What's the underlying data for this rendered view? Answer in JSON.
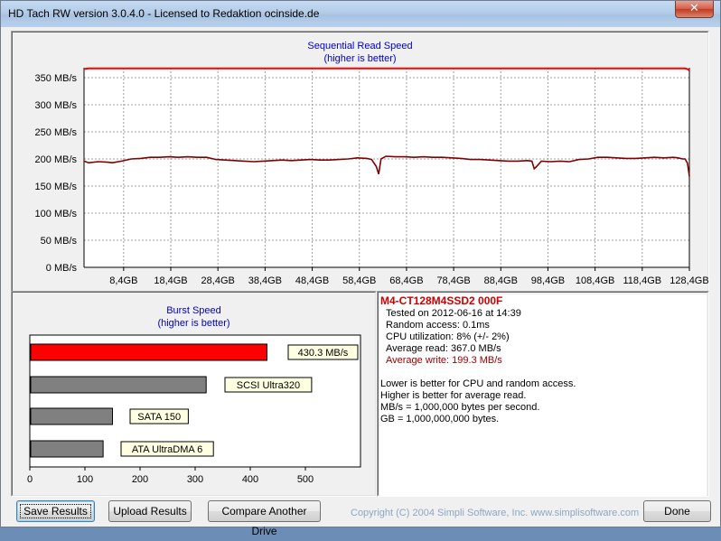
{
  "window": {
    "title": "HD Tach RW version 3.0.4.0 - Licensed to Redaktion ocinside.de",
    "close_label": "✕"
  },
  "sequential_chart": {
    "title": "Sequential Read Speed",
    "subtitle": "(higher is better)"
  },
  "burst_chart": {
    "title": "Burst Speed",
    "subtitle": "(higher is better)"
  },
  "chart_data": [
    {
      "type": "line",
      "title": "Sequential Read Speed",
      "subtitle": "(higher is better)",
      "y_ticks": [
        "0 MB/s",
        "50 MB/s",
        "100 MB/s",
        "150 MB/s",
        "200 MB/s",
        "250 MB/s",
        "300 MB/s",
        "350 MB/s"
      ],
      "x_ticks": [
        "8,4GB",
        "18,4GB",
        "28,4GB",
        "38,4GB",
        "48,4GB",
        "58,4GB",
        "68,4GB",
        "78,4GB",
        "88,4GB",
        "98,4GB",
        "108,4GB",
        "118,4GB",
        "128,4GB"
      ],
      "ylim": [
        0,
        370
      ],
      "xlim": [
        0,
        128.4
      ],
      "grid": true,
      "series": [
        {
          "color": "#ff0000",
          "x": [
            0,
            1,
            10,
            30,
            60,
            90,
            120,
            127.5,
            128,
            128.4
          ],
          "y": [
            366,
            367,
            367,
            367,
            367,
            367,
            367,
            367,
            366,
            363
          ]
        },
        {
          "color": "#800000",
          "x": [
            0,
            1,
            3,
            5,
            6,
            8,
            10,
            12,
            14,
            16,
            18,
            20,
            22,
            24,
            26,
            28,
            30,
            32,
            34,
            36,
            38,
            40,
            42,
            44,
            46,
            48,
            50,
            52,
            54,
            56,
            58,
            60,
            61,
            62,
            62.5,
            63,
            64,
            66,
            68,
            70,
            72,
            74,
            76,
            78,
            80,
            82,
            84,
            86,
            88,
            90,
            92,
            94,
            95,
            95.5,
            96,
            97,
            99,
            101,
            103,
            105,
            107,
            109,
            111,
            113,
            115,
            117,
            119,
            121,
            123,
            125,
            126,
            127,
            127.5,
            128,
            128.4
          ],
          "y": [
            196,
            193,
            195,
            194,
            193,
            196,
            200,
            201,
            203,
            203,
            204,
            203,
            204,
            203,
            203,
            199,
            198,
            197,
            196,
            195,
            196,
            197,
            198,
            197,
            198,
            199,
            198,
            198,
            199,
            200,
            202,
            201,
            199,
            186,
            172,
            200,
            205,
            204,
            204,
            203,
            204,
            203,
            203,
            202,
            201,
            199,
            199,
            198,
            197,
            196,
            196,
            197,
            196,
            182,
            186,
            196,
            195,
            196,
            195,
            199,
            200,
            203,
            203,
            202,
            201,
            201,
            202,
            203,
            202,
            203,
            202,
            200,
            200,
            192,
            168
          ]
        }
      ]
    },
    {
      "type": "bar",
      "orientation": "horizontal",
      "title": "Burst Speed",
      "subtitle": "(higher is better)",
      "categories": [
        "430.3 MB/s",
        "SCSI Ultra320",
        "SATA 150",
        "ATA UltraDMA 6"
      ],
      "values": [
        430.3,
        320,
        150,
        133
      ],
      "colors": [
        "#ff0000",
        "#808080",
        "#808080",
        "#808080"
      ],
      "x_ticks": [
        "0",
        "100",
        "200",
        "300",
        "400",
        "500"
      ],
      "xlim": [
        0,
        600
      ]
    }
  ],
  "results": {
    "drive": "M4-CT128M4SSD2 000F",
    "tested_on": "Tested on 2012-06-16 at 14:39",
    "random_access": "Random access: 0.1ms",
    "cpu": "CPU utilization: 8% (+/- 2%)",
    "avg_read": "Average read: 367.0 MB/s",
    "avg_write": "Average write: 199.3 MB/s",
    "note1": "Lower is better for CPU and random access.",
    "note2": "Higher is better for average read.",
    "note3": "MB/s = 1,000,000 bytes per second.",
    "note4": "GB = 1,000,000,000 bytes.",
    "drive_color": "#cc0000",
    "write_color": "#a00000"
  },
  "buttons": {
    "save": "Save Results",
    "upload": "Upload Results",
    "compare": "Compare Another Drive",
    "done": "Done"
  },
  "footer": {
    "copyright": "Copyright (C) 2004 Simpli Software, Inc. www.simplisoftware.com"
  }
}
